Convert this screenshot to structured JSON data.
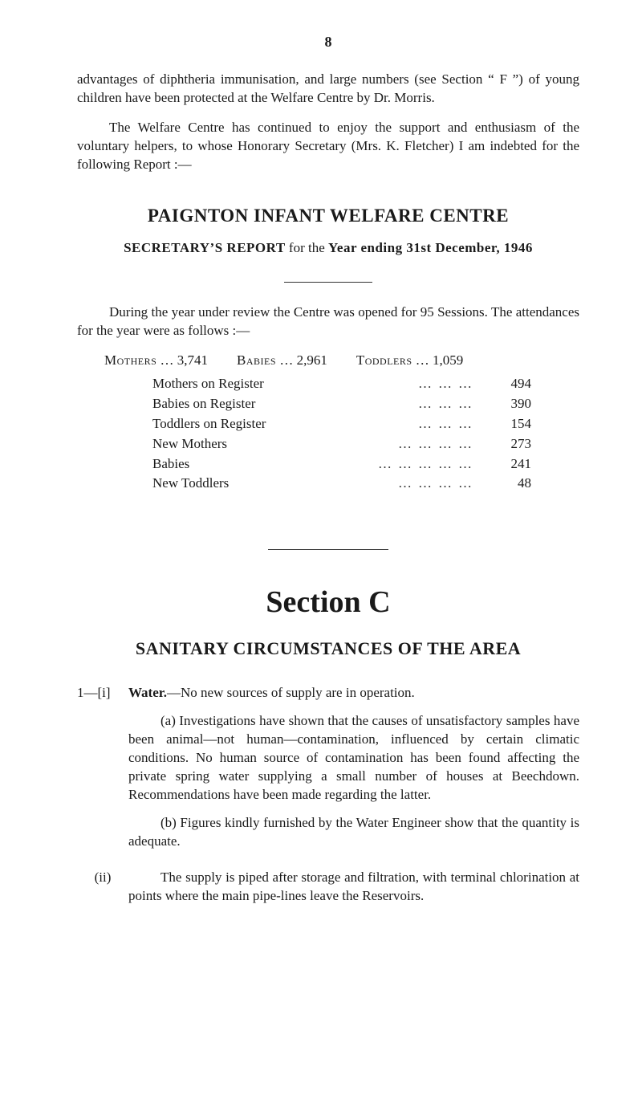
{
  "page_number": "8",
  "para1": "advantages of diphtheria immunisation, and large numbers (see Section “ F ”) of young children have been protected at the Welfare Centre by Dr. Morris.",
  "para2": "The Welfare Centre has continued to enjoy the support and enthusiasm of the voluntary helpers, to whose Honorary Secretary (Mrs. K. Fletcher) I am indebted for the following Report :—",
  "centre_title": "PAIGNTON INFANT WELFARE CENTRE",
  "secretary_bold": "SECRETARY’S REPORT",
  "secretary_mid": " for the ",
  "secretary_bold2": "Year ending 31st December, 1946",
  "para3a": "During the year under review the Centre was opened for 95 Sessions.",
  "para3b": " The attendances for the year were as follows :—",
  "stats_head": {
    "mothers_label": "Mothers",
    "mothers_val": " … 3,741",
    "babies_label": "Babies",
    "babies_val": " … 2,961",
    "toddlers_label": "Toddlers",
    "toddlers_val": " … 1,059"
  },
  "stats_rows": [
    {
      "label": "Mothers on Register",
      "value": "494"
    },
    {
      "label": "Babies on Register",
      "value": "390"
    },
    {
      "label": "Toddlers on Register",
      "value": "154"
    },
    {
      "label": "New Mothers",
      "value": "273"
    },
    {
      "label": "Babies",
      "value": "241"
    },
    {
      "label": "New Toddlers",
      "value": "48"
    }
  ],
  "section_title": "Section C",
  "section_sub": "SANITARY CIRCUMSTANCES OF THE AREA",
  "item1": {
    "marker": "1—[i]",
    "lead": "Water.",
    "lead_rest": "—No new sources of supply are in operation.",
    "a": "(a) Investigations have shown that the causes of unsatisfactory samples have been animal—not human—contamination, influenced by certain climatic conditions. No human source of contamination has been found affecting the private spring water supplying a small number of houses at Beechdown. Recommendations have been made regarding the latter.",
    "b": "(b) Figures kindly furnished by the Water Engineer show that the quantity is adequate."
  },
  "item2": {
    "marker": "(ii)",
    "text": "The supply is piped after storage and filtration, with terminal chlorination at points where the main pipe-lines leave the Reservoirs."
  },
  "colors": {
    "text": "#1a1a1a",
    "background": "#ffffff",
    "rule": "#333333"
  },
  "typography": {
    "body_family": "Times New Roman serif",
    "body_size_pt": 12,
    "h_centre_size_pt": 17,
    "section_title_size_pt": 28,
    "section_sub_size_pt": 16
  }
}
